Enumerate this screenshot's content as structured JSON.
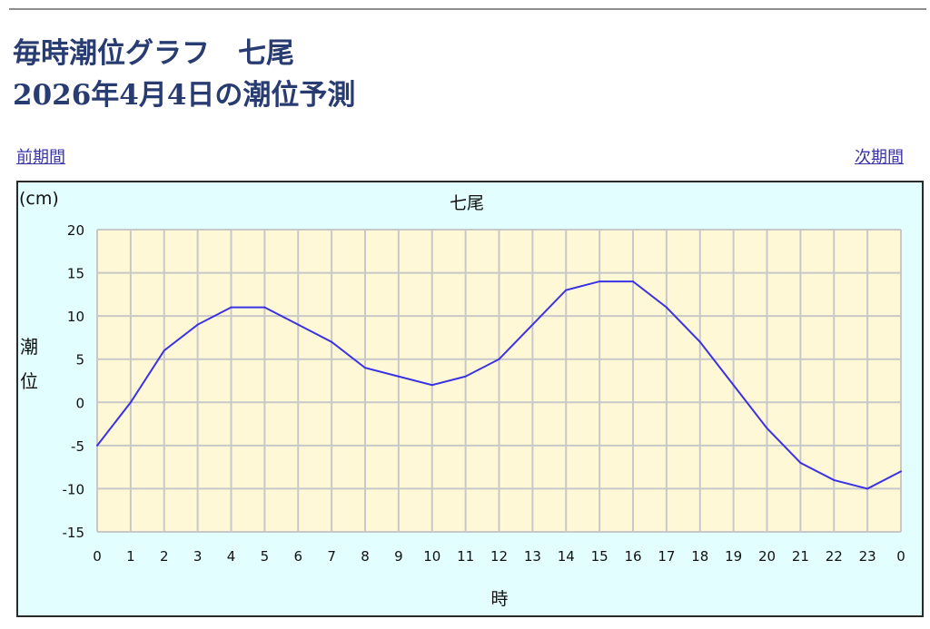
{
  "header": {
    "title_line1": "毎時潮位グラフ　七尾",
    "title_line2": "2026年4月4日の潮位予測"
  },
  "nav": {
    "prev_label": "前期間",
    "next_label": "次期間"
  },
  "colors": {
    "title": "#283c72",
    "link": "#3a34a8",
    "chart_background": "#e2feff",
    "plot_background": "#fff8d6",
    "grid": "#c8c8c8",
    "series_line": "#3a32e6"
  },
  "chart_data": {
    "type": "line",
    "title": "七尾",
    "unit_label": "(cm)",
    "ylabel": "潮位",
    "xlabel": "時",
    "x": [
      "0",
      "1",
      "2",
      "3",
      "4",
      "5",
      "6",
      "7",
      "8",
      "9",
      "10",
      "11",
      "12",
      "13",
      "14",
      "15",
      "16",
      "17",
      "18",
      "19",
      "20",
      "21",
      "22",
      "23",
      "0"
    ],
    "series": [
      {
        "values": [
          -5,
          0,
          6,
          9,
          11,
          11,
          9,
          7,
          4,
          3,
          2,
          3,
          5,
          9,
          13,
          14,
          14,
          11,
          7,
          2,
          -3,
          -7,
          -9,
          -10,
          -8
        ]
      }
    ],
    "yticks": [
      20,
      15,
      10,
      5,
      0,
      -5,
      -10,
      -15
    ],
    "ylim": [
      -15,
      20
    ],
    "grid": true,
    "legend": "none"
  }
}
